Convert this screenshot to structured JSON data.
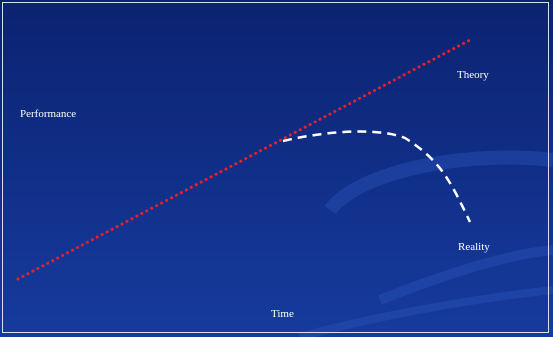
{
  "labels": {
    "y_axis": "Performance",
    "x_axis": "Time",
    "theory": "Theory",
    "reality": "Reality"
  },
  "colors": {
    "background_top": "#0b2270",
    "background_bottom": "#163b9e",
    "theory_line": "#e8202a",
    "reality_line": "#ffffff",
    "text": "#ffffff"
  },
  "curves": {
    "theory": {
      "style": "dotted"
    },
    "reality": {
      "style": "dashed"
    }
  }
}
